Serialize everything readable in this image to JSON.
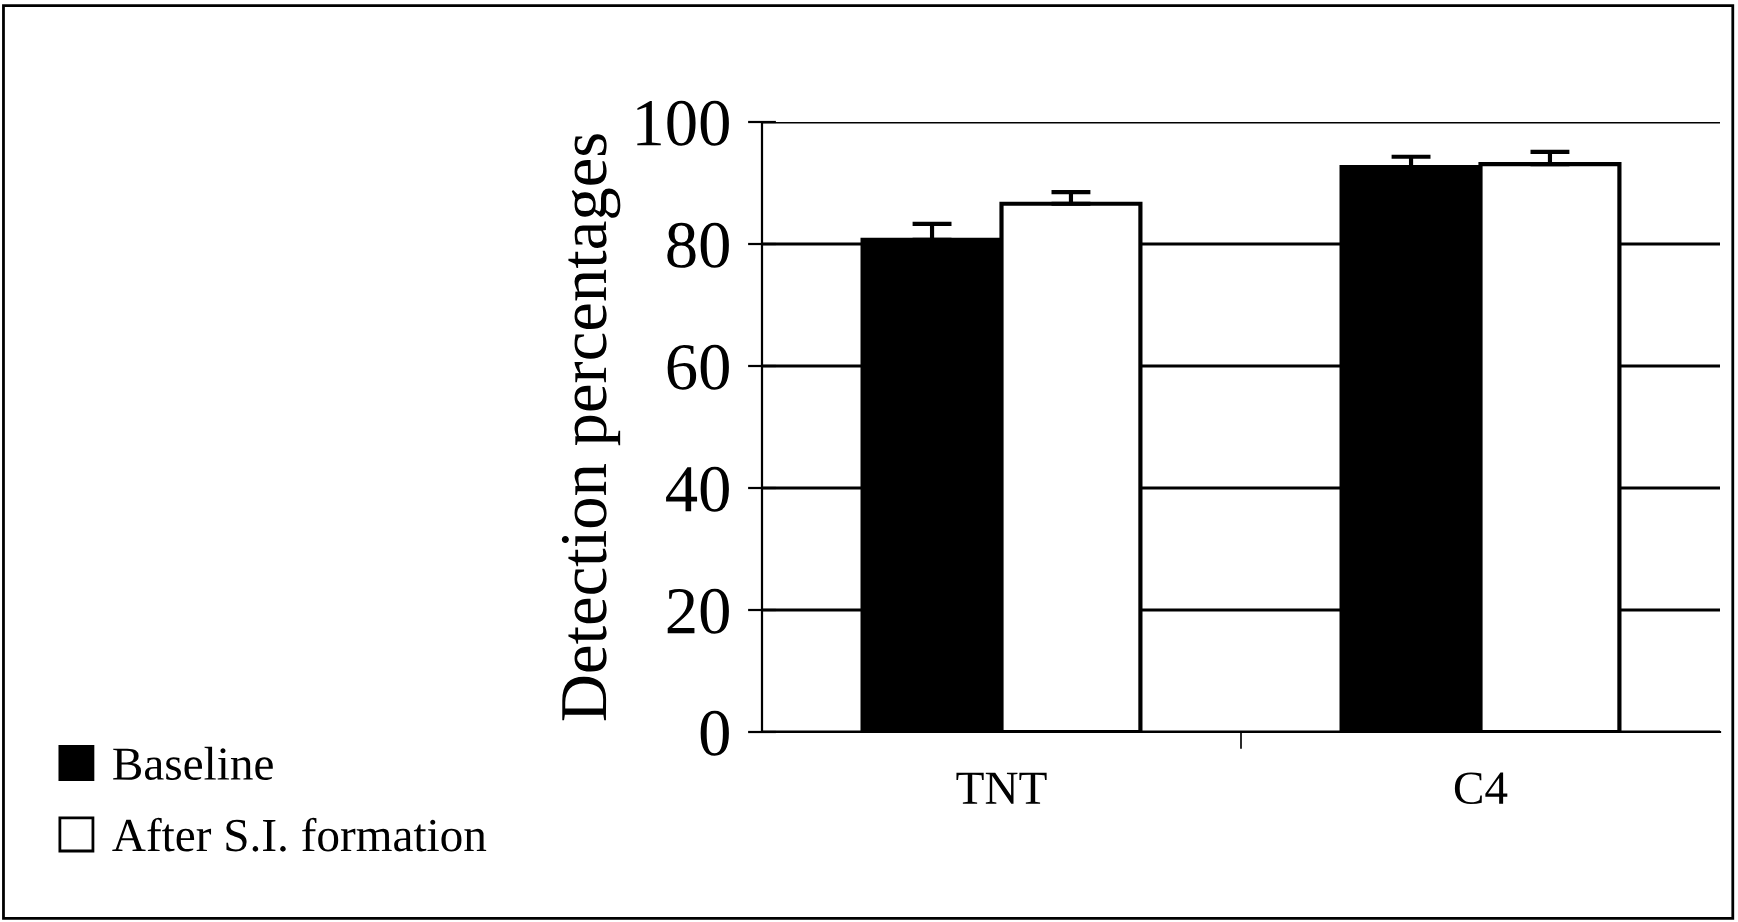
{
  "chart_data": {
    "type": "bar",
    "ylabel": "Detection percentages",
    "categories": [
      "TNT",
      "C4"
    ],
    "series": [
      {
        "name": "Baseline",
        "color": "#000000",
        "values": [
          80.7,
          92.6
        ],
        "errors": [
          [
            80.7,
            83.3
          ],
          [
            92.6,
            94.3
          ]
        ]
      },
      {
        "name": "After S.I. formation",
        "color": "#ffffff",
        "values": [
          86.6,
          93.1
        ],
        "errors": [
          [
            86.6,
            88.5
          ],
          [
            93.1,
            95.1
          ]
        ]
      }
    ],
    "ylim": [
      0,
      100
    ],
    "yticks": [
      0,
      20,
      40,
      60,
      80,
      100
    ],
    "grid": "y",
    "legend": "bottom left"
  }
}
